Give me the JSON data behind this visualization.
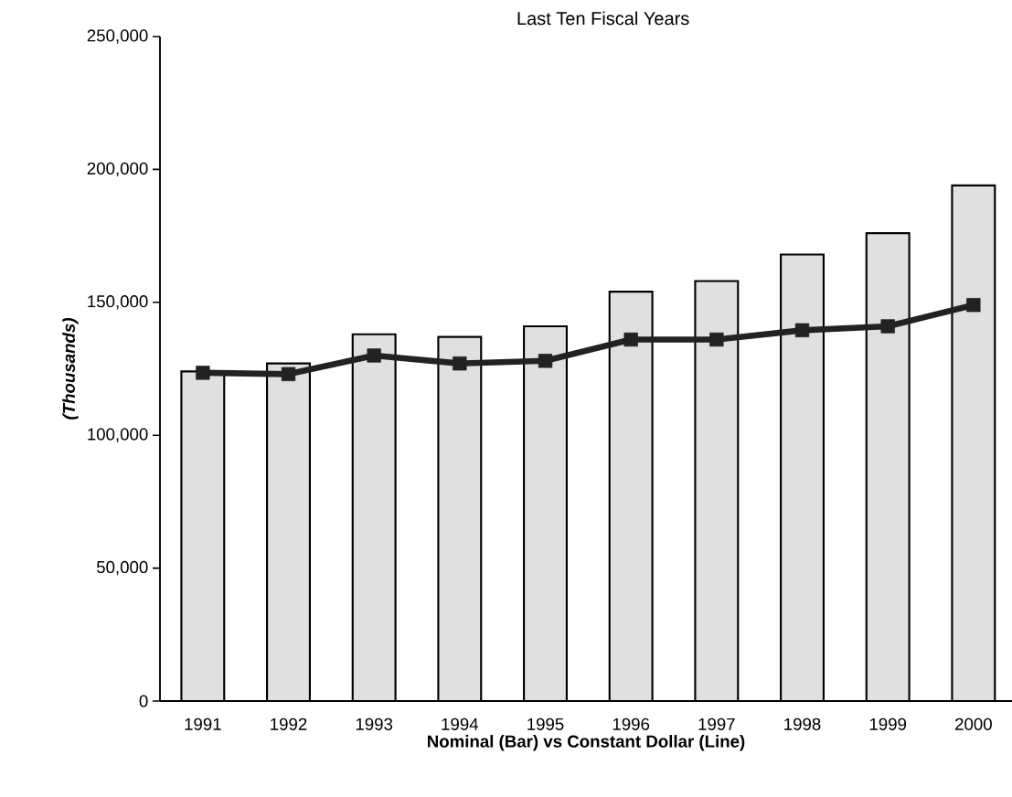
{
  "chart_data": {
    "type": "bar",
    "title": "Last Ten Fiscal Years",
    "xlabel": "Nominal (Bar) vs Constant Dollar (Line)",
    "ylabel": "(Thousands)",
    "categories": [
      "1991",
      "1992",
      "1993",
      "1994",
      "1995",
      "1996",
      "1997",
      "1998",
      "1999",
      "2000"
    ],
    "series": [
      {
        "color": "#e0e0e0",
        "values": [
          124000,
          127000,
          138000,
          137000,
          141000,
          154000,
          158000,
          168000,
          176000,
          194000
        ]
      },
      {
        "type": "line",
        "color": "#222222",
        "values": [
          123500,
          123000,
          130000,
          127000,
          128000,
          136000,
          136000,
          139500,
          141000,
          149000
        ]
      }
    ],
    "marker": "square",
    "legend": false,
    "ylim": [
      0,
      250000
    ],
    "yticks": [
      0,
      {
        "value": 50000,
        "label": "50,000"
      },
      {
        "value": 100000,
        "label": "100,000"
      },
      {
        "value": 150000,
        "label": "150,000"
      },
      {
        "value": 200000,
        "label": "200,000"
      },
      {
        "value": 250000,
        "label": "250,000"
      }
    ]
  }
}
